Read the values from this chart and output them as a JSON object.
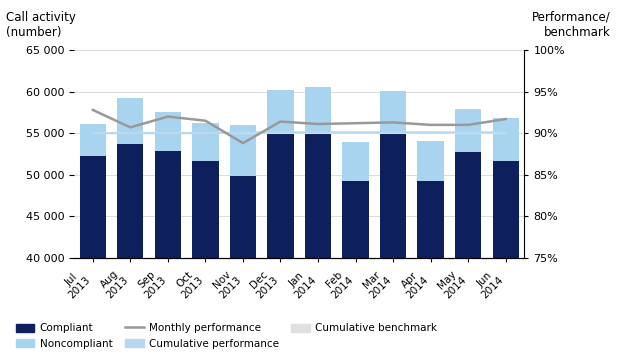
{
  "months": [
    "Jul\n2013",
    "Aug\n2013",
    "Sep\n2013",
    "Oct\n2013",
    "Nov\n2013",
    "Dec\n2013",
    "Jan\n2014",
    "Feb\n2014",
    "Mar\n2014",
    "Apr\n2014",
    "May\n2014",
    "Jun\n2014"
  ],
  "compliant": [
    52300,
    53700,
    52900,
    51700,
    49900,
    55000,
    55100,
    49200,
    54900,
    49200,
    52700,
    51600
  ],
  "noncompliant": [
    3800,
    5500,
    4600,
    4500,
    6100,
    5200,
    5400,
    4700,
    5200,
    4900,
    5200,
    5200
  ],
  "monthly_performance": [
    92.8,
    90.7,
    92.0,
    91.5,
    88.8,
    91.4,
    91.1,
    91.2,
    91.3,
    91.0,
    91.0,
    91.7
  ],
  "cumulative_performance": [
    90.0,
    90.0,
    90.0,
    90.0,
    90.1,
    90.1,
    90.1,
    90.1,
    90.1,
    90.1,
    90.1,
    90.1
  ],
  "cumulative_benchmark": [
    90.0,
    90.0,
    90.0,
    90.0,
    90.0,
    90.0,
    90.0,
    90.0,
    90.0,
    90.0,
    90.0,
    90.0
  ],
  "ylim_left": [
    40000,
    65000
  ],
  "ylim_right": [
    75,
    100
  ],
  "compliant_color": "#0d1f5c",
  "noncompliant_color": "#a8d4f0",
  "monthly_perf_color": "#999999",
  "cumulative_perf_color": "#b8d8f0",
  "cumulative_bench_color": "#e0e0e0",
  "title_left": "Call activity\n(number)",
  "title_right": "Performance/\nbenchmark",
  "yticks_left": [
    40000,
    45000,
    50000,
    55000,
    60000,
    65000
  ],
  "yticks_right": [
    75,
    80,
    85,
    90,
    95,
    100
  ],
  "ytick_labels_left": [
    "40 000",
    "45 000",
    "50 000",
    "55 000",
    "60 000",
    "65 000"
  ],
  "ytick_labels_right": [
    "75%",
    "80%",
    "85%",
    "90%",
    "95%",
    "100%"
  ]
}
